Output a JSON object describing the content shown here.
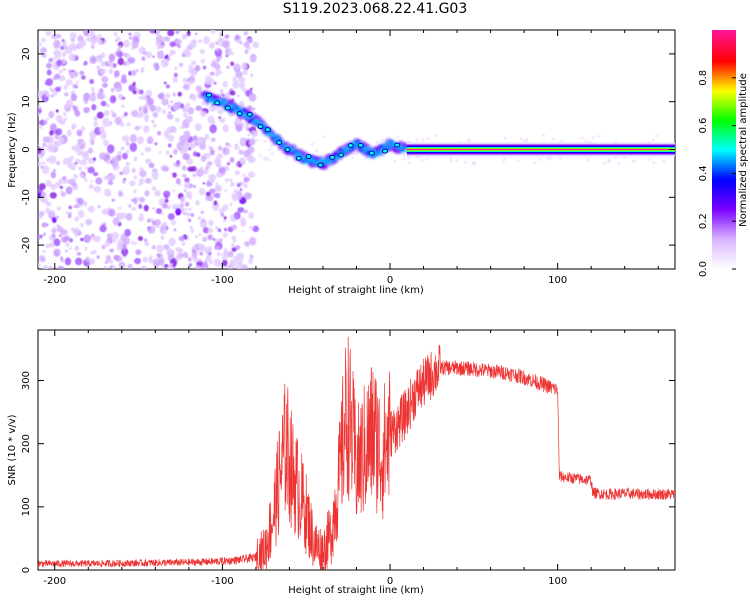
{
  "figure_title": "S119.2023.068.22.41.G03",
  "chart_data": [
    {
      "type": "heatmap",
      "title": "S119.2023.068.22.41.G03",
      "xlabel": "Height of straight line (km)",
      "ylabel": "Frequency (Hz)",
      "xlim": [
        -210,
        170
      ],
      "ylim": [
        -25,
        25
      ],
      "x_ticks": [
        -200,
        -100,
        0,
        100
      ],
      "y_ticks": [
        -20,
        -10,
        0,
        10,
        20
      ],
      "colorbar": {
        "label": "Normalized spectral amplitude",
        "range": [
          0.0,
          1.0
        ],
        "ticks": [
          "0.0",
          "0.2",
          "0.4",
          "0.6",
          "0.8"
        ],
        "colors": [
          "#ffffff",
          "#d9b3ff",
          "#7a00ff",
          "#0000ff",
          "#00ffff",
          "#00ff00",
          "#ffff00",
          "#ff0000",
          "#ff1493"
        ]
      },
      "features": {
        "noise_region_x": [
          -210,
          -80
        ],
        "tone_track": [
          {
            "x": -110,
            "y": 11
          },
          {
            "x": -95,
            "y": 9
          },
          {
            "x": -80,
            "y": 6
          },
          {
            "x": -70,
            "y": 3
          },
          {
            "x": -60,
            "y": 0
          },
          {
            "x": -50,
            "y": -2
          },
          {
            "x": -40,
            "y": -3
          },
          {
            "x": -30,
            "y": -1
          },
          {
            "x": -20,
            "y": 1
          },
          {
            "x": -10,
            "y": -1
          },
          {
            "x": 0,
            "y": 1
          },
          {
            "x": 10,
            "y": 0
          },
          {
            "x": 170,
            "y": 0
          }
        ],
        "strong_carrier_x": [
          10,
          170
        ],
        "carrier_frequency_hz": 0
      }
    },
    {
      "type": "line",
      "xlabel": "Height of straight line (km)",
      "ylabel": "SNR (10 * v/v)",
      "xlim": [
        -210,
        170
      ],
      "ylim": [
        0,
        380
      ],
      "x_ticks": [
        -200,
        -100,
        0,
        100
      ],
      "y_ticks": [
        0,
        100,
        200,
        300
      ],
      "line_color": "#ee3333",
      "series": [
        {
          "x": [
            -210,
            -180,
            -150,
            -120,
            -100,
            -90,
            -80,
            -75,
            -70,
            -65,
            -62,
            -58,
            -55,
            -50,
            -45,
            -40,
            -35,
            -30,
            -27,
            -25,
            -22,
            -20,
            -15,
            -10,
            -5,
            0,
            5,
            10,
            15,
            20,
            25,
            30,
            40,
            50,
            60,
            70,
            80,
            90,
            100,
            101,
            110,
            120,
            121,
            130,
            140,
            150,
            160,
            170
          ],
          "y": [
            10,
            10,
            11,
            12,
            14,
            16,
            20,
            30,
            80,
            160,
            200,
            150,
            130,
            90,
            40,
            30,
            60,
            150,
            230,
            250,
            200,
            160,
            190,
            220,
            180,
            215,
            230,
            250,
            280,
            295,
            310,
            320,
            320,
            318,
            315,
            312,
            305,
            295,
            285,
            148,
            145,
            142,
            122,
            120,
            121,
            120,
            120,
            120
          ]
        }
      ]
    }
  ]
}
